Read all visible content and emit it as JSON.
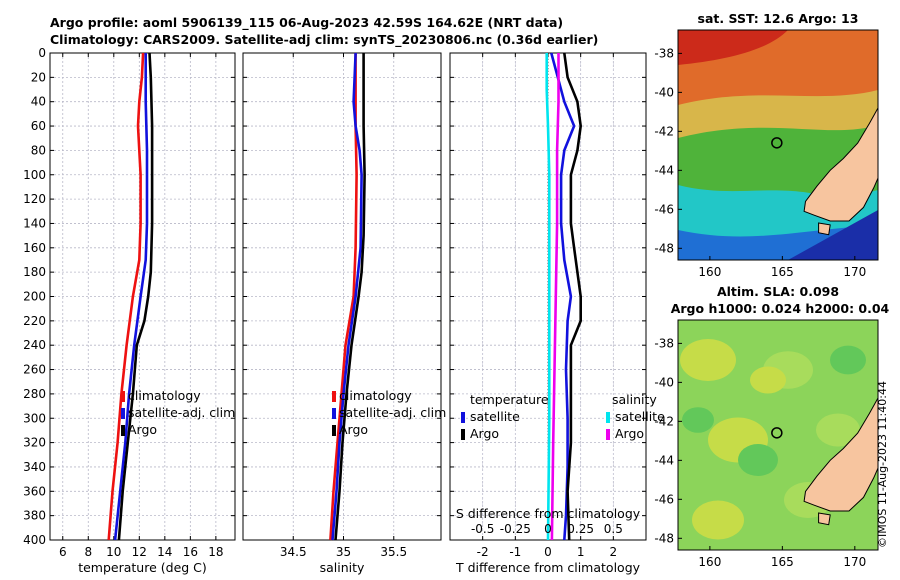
{
  "title": {
    "line1": "Argo profile: aoml 5906139_115 06-Aug-2023 42.59S 164.62E (NRT data)",
    "line2": "Climatology: CARS2009. Satellite-adj clim: synTS_20230806.nc (0.36d earlier)"
  },
  "footer": "©IMOS 11-Aug-2023 11:40:44",
  "chart_data": [
    {
      "type": "line",
      "xlabel": "temperature (deg C)",
      "ylabel": "",
      "xlim": [
        5,
        19.5
      ],
      "ylim": [
        400,
        0
      ],
      "xticks": [
        6,
        8,
        10,
        12,
        14,
        16,
        18
      ],
      "yticks": [
        0,
        20,
        40,
        60,
        80,
        100,
        120,
        140,
        160,
        180,
        200,
        220,
        240,
        260,
        280,
        300,
        320,
        340,
        360,
        380,
        400
      ],
      "grid": true,
      "legend": {
        "placement": "center-right",
        "entries": [
          "climatology",
          "satellite-adj. clim",
          "Argo"
        ]
      },
      "series": [
        {
          "name": "climatology",
          "color": "#ee1111",
          "points": [
            [
              12.3,
              0
            ],
            [
              12.2,
              20
            ],
            [
              12.0,
              40
            ],
            [
              11.9,
              60
            ],
            [
              12.0,
              80
            ],
            [
              12.1,
              100
            ],
            [
              12.1,
              140
            ],
            [
              12.0,
              170
            ],
            [
              11.5,
              200
            ],
            [
              11.0,
              240
            ],
            [
              10.6,
              280
            ],
            [
              10.3,
              320
            ],
            [
              9.9,
              360
            ],
            [
              9.6,
              400
            ]
          ]
        },
        {
          "name": "satellite-adj. clim",
          "color": "#1111dd",
          "points": [
            [
              12.5,
              0
            ],
            [
              12.5,
              40
            ],
            [
              12.6,
              80
            ],
            [
              12.6,
              140
            ],
            [
              12.5,
              170
            ],
            [
              12.1,
              200
            ],
            [
              11.6,
              240
            ],
            [
              11.2,
              280
            ],
            [
              10.9,
              320
            ],
            [
              10.5,
              360
            ],
            [
              10.1,
              400
            ]
          ]
        },
        {
          "name": "Argo",
          "color": "#000000",
          "points": [
            [
              12.8,
              0
            ],
            [
              12.9,
              20
            ],
            [
              13.0,
              60
            ],
            [
              13.0,
              100
            ],
            [
              13.0,
              140
            ],
            [
              12.9,
              180
            ],
            [
              12.7,
              200
            ],
            [
              12.4,
              220
            ],
            [
              11.8,
              240
            ],
            [
              11.5,
              280
            ],
            [
              11.1,
              320
            ],
            [
              10.7,
              360
            ],
            [
              10.4,
              400
            ]
          ]
        }
      ]
    },
    {
      "type": "line",
      "xlabel": "salinity",
      "ylabel": "",
      "xlim": [
        34.0,
        35.97
      ],
      "ylim": [
        400,
        0
      ],
      "xticks": [
        34.5,
        35,
        35.5
      ],
      "grid": true,
      "legend": {
        "placement": "center-right",
        "entries": [
          "climatology",
          "satellite-adj. clim",
          "Argo"
        ]
      },
      "series": [
        {
          "name": "climatology",
          "color": "#ee1111",
          "points": [
            [
              35.12,
              0
            ],
            [
              35.12,
              60
            ],
            [
              35.13,
              100
            ],
            [
              35.12,
              160
            ],
            [
              35.1,
              200
            ],
            [
              35.02,
              240
            ],
            [
              34.98,
              280
            ],
            [
              34.94,
              320
            ],
            [
              34.9,
              360
            ],
            [
              34.87,
              400
            ]
          ]
        },
        {
          "name": "satellite-adj. clim",
          "color": "#1111dd",
          "points": [
            [
              35.12,
              0
            ],
            [
              35.1,
              40
            ],
            [
              35.12,
              60
            ],
            [
              35.16,
              80
            ],
            [
              35.18,
              100
            ],
            [
              35.17,
              160
            ],
            [
              35.12,
              200
            ],
            [
              35.05,
              240
            ],
            [
              35.0,
              280
            ],
            [
              34.96,
              320
            ],
            [
              34.93,
              360
            ],
            [
              34.89,
              400
            ]
          ]
        },
        {
          "name": "Argo",
          "color": "#000000",
          "points": [
            [
              35.2,
              0
            ],
            [
              35.2,
              60
            ],
            [
              35.21,
              100
            ],
            [
              35.2,
              150
            ],
            [
              35.18,
              180
            ],
            [
              35.15,
              200
            ],
            [
              35.08,
              240
            ],
            [
              35.03,
              280
            ],
            [
              34.99,
              320
            ],
            [
              34.96,
              360
            ],
            [
              34.92,
              400
            ]
          ]
        }
      ]
    },
    {
      "type": "line",
      "xlabel": "T difference from climatology",
      "x2label": "S difference from climatology",
      "ylabel": "",
      "xlim": [
        -3,
        3
      ],
      "x2lim": [
        -0.75,
        0.75
      ],
      "ylim": [
        400,
        0
      ],
      "xticks": [
        -2,
        -1,
        0,
        1,
        2
      ],
      "x2ticks": [
        -0.5,
        -0.25,
        0,
        0.25,
        0.5
      ],
      "x2ticklabels": [
        "-0.5",
        "-0.25",
        "0",
        "0.25",
        "0.5"
      ],
      "grid": true,
      "legend": {
        "placement": "center",
        "groups": [
          {
            "title": "temperature",
            "entries": [
              "satellite",
              "Argo"
            ]
          },
          {
            "title": "salinity",
            "entries": [
              "satellite",
              "Argo"
            ]
          }
        ]
      },
      "series": [
        {
          "name": "temperature satellite",
          "color": "#1111dd",
          "points": [
            [
              0.1,
              0
            ],
            [
              0.3,
              20
            ],
            [
              0.5,
              40
            ],
            [
              0.8,
              60
            ],
            [
              0.5,
              80
            ],
            [
              0.4,
              100
            ],
            [
              0.4,
              140
            ],
            [
              0.5,
              170
            ],
            [
              0.7,
              200
            ],
            [
              0.6,
              220
            ],
            [
              0.55,
              260
            ],
            [
              0.6,
              300
            ],
            [
              0.6,
              340
            ],
            [
              0.55,
              380
            ],
            [
              0.5,
              400
            ]
          ]
        },
        {
          "name": "temperature Argo",
          "color": "#000000",
          "points": [
            [
              0.5,
              0
            ],
            [
              0.6,
              20
            ],
            [
              0.9,
              40
            ],
            [
              1.0,
              60
            ],
            [
              0.9,
              80
            ],
            [
              0.7,
              100
            ],
            [
              0.7,
              140
            ],
            [
              0.8,
              160
            ],
            [
              1.0,
              200
            ],
            [
              1.0,
              220
            ],
            [
              0.7,
              240
            ],
            [
              0.7,
              280
            ],
            [
              0.7,
              320
            ],
            [
              0.6,
              360
            ],
            [
              0.65,
              400
            ]
          ]
        },
        {
          "name": "salinity satellite",
          "color": "#00e5ee",
          "points": [
            [
              -0.01,
              0
            ],
            [
              -0.01,
              30
            ],
            [
              0.0,
              60
            ],
            [
              0.01,
              100
            ],
            [
              0.01,
              200
            ],
            [
              0.01,
              300
            ],
            [
              0.0,
              400
            ]
          ]
        },
        {
          "name": "salinity Argo",
          "color": "#ee00ee",
          "points": [
            [
              0.08,
              0
            ],
            [
              0.08,
              40
            ],
            [
              0.07,
              80
            ],
            [
              0.07,
              140
            ],
            [
              0.06,
              200
            ],
            [
              0.05,
              260
            ],
            [
              0.04,
              320
            ],
            [
              0.03,
              400
            ]
          ]
        }
      ]
    }
  ],
  "maps": [
    {
      "title": "sat. SST: 12.6 Argo: 13",
      "xticks": [
        "160",
        "165",
        "170"
      ],
      "yticks": [
        "-38",
        "-40",
        "-42",
        "-44",
        "-46",
        "-48"
      ],
      "marker": {
        "lon": 164.62,
        "lat": -42.59
      }
    },
    {
      "title_line1": "Altim. SLA: 0.098",
      "title_line2": "Argo h1000: 0.024 h2000: 0.04",
      "xticks": [
        "160",
        "165",
        "170"
      ],
      "yticks": [
        "-38",
        "-40",
        "-42",
        "-44",
        "-46",
        "-48"
      ],
      "marker": {
        "lon": 164.62,
        "lat": -42.59
      }
    }
  ]
}
